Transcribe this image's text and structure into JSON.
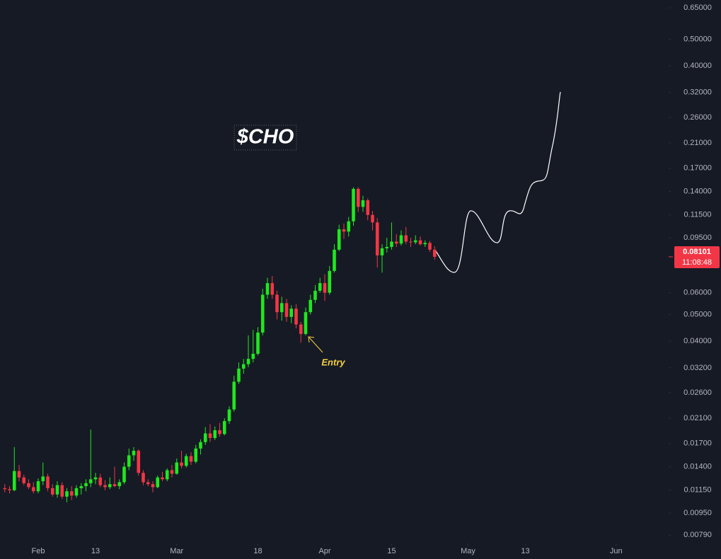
{
  "chart_data": {
    "type": "candlestick",
    "title": "$CHO",
    "annotation": "Entry",
    "last_price": 0.08101,
    "countdown": "11:08:48",
    "log_scale": true,
    "up_color": "#1ee81e",
    "down_color": "#f23645",
    "x": [
      "01-25",
      "01-26",
      "01-27",
      "01-28",
      "01-29",
      "01-30",
      "01-31",
      "02-01",
      "02-02",
      "02-03",
      "02-04",
      "02-05",
      "02-06",
      "02-07",
      "02-08",
      "02-09",
      "02-10",
      "02-11",
      "02-12",
      "02-13",
      "02-14",
      "02-15",
      "02-16",
      "02-17",
      "02-18",
      "02-19",
      "02-20",
      "02-21",
      "02-22",
      "02-23",
      "02-24",
      "02-25",
      "02-26",
      "02-27",
      "02-28",
      "02-29",
      "03-01",
      "03-02",
      "03-03",
      "03-04",
      "03-05",
      "03-06",
      "03-07",
      "03-08",
      "03-09",
      "03-10",
      "03-11",
      "03-12",
      "03-13",
      "03-14",
      "03-15",
      "03-16",
      "03-17",
      "03-18",
      "03-19",
      "03-20",
      "03-21",
      "03-22",
      "03-23",
      "03-24",
      "03-25",
      "03-26",
      "03-27",
      "03-28",
      "03-29",
      "03-30",
      "03-31",
      "04-01",
      "04-02",
      "04-03",
      "04-04",
      "04-05",
      "04-06",
      "04-07",
      "04-08",
      "04-09",
      "04-10",
      "04-11",
      "04-12",
      "04-13",
      "04-14",
      "04-15",
      "04-16",
      "04-17",
      "04-18",
      "04-19",
      "04-20",
      "04-21",
      "04-22",
      "04-23",
      "04-24"
    ],
    "open": [
      0.0117,
      0.0116,
      0.0115,
      0.0135,
      0.0128,
      0.0122,
      0.0118,
      0.0114,
      0.0124,
      0.0129,
      0.0117,
      0.0111,
      0.012,
      0.0109,
      0.0114,
      0.011,
      0.0117,
      0.0119,
      0.0122,
      0.0126,
      0.0128,
      0.012,
      0.0118,
      0.0121,
      0.0119,
      0.0123,
      0.014,
      0.0154,
      0.016,
      0.0133,
      0.0123,
      0.0121,
      0.0118,
      0.0128,
      0.0126,
      0.0136,
      0.0132,
      0.0145,
      0.0141,
      0.0153,
      0.0146,
      0.0163,
      0.0172,
      0.0185,
      0.0178,
      0.019,
      0.0184,
      0.0205,
      0.0226,
      0.0285,
      0.0318,
      0.033,
      0.0345,
      0.036,
      0.043,
      0.059,
      0.065,
      0.059,
      0.051,
      0.055,
      0.049,
      0.0525,
      0.046,
      0.0425,
      0.051,
      0.0565,
      0.061,
      0.065,
      0.06,
      0.072,
      0.086,
      0.102,
      0.1,
      0.109,
      0.143,
      0.123,
      0.13,
      0.115,
      0.108,
      0.082,
      0.087,
      0.088,
      0.092,
      0.0905,
      0.097,
      0.092,
      0.0915,
      0.093,
      0.09,
      0.091,
      0.086
    ],
    "high": [
      0.0121,
      0.0119,
      0.0165,
      0.0142,
      0.0131,
      0.0126,
      0.0123,
      0.0127,
      0.0145,
      0.0132,
      0.0121,
      0.0124,
      0.0123,
      0.0117,
      0.0119,
      0.012,
      0.0122,
      0.0126,
      0.0191,
      0.0133,
      0.0132,
      0.0125,
      0.0128,
      0.014,
      0.0126,
      0.0145,
      0.0163,
      0.0165,
      0.0162,
      0.0136,
      0.0126,
      0.0124,
      0.013,
      0.0134,
      0.0138,
      0.0142,
      0.015,
      0.016,
      0.0156,
      0.0158,
      0.0168,
      0.0176,
      0.0195,
      0.02,
      0.0196,
      0.0202,
      0.021,
      0.0232,
      0.03,
      0.0335,
      0.0345,
      0.042,
      0.044,
      0.045,
      0.062,
      0.068,
      0.069,
      0.061,
      0.058,
      0.057,
      0.054,
      0.0545,
      0.047,
      0.053,
      0.059,
      0.064,
      0.068,
      0.07,
      0.075,
      0.09,
      0.106,
      0.107,
      0.113,
      0.145,
      0.145,
      0.135,
      0.132,
      0.119,
      0.112,
      0.09,
      0.095,
      0.108,
      0.098,
      0.101,
      0.104,
      0.095,
      0.097,
      0.096,
      0.093,
      0.0925,
      0.0885
    ],
    "low": [
      0.0113,
      0.0112,
      0.0114,
      0.0124,
      0.012,
      0.0116,
      0.0112,
      0.0112,
      0.012,
      0.0114,
      0.0109,
      0.0108,
      0.0107,
      0.0104,
      0.0106,
      0.0108,
      0.0111,
      0.0114,
      0.0118,
      0.0121,
      0.0118,
      0.0115,
      0.0116,
      0.0118,
      0.0116,
      0.0121,
      0.0136,
      0.0147,
      0.013,
      0.012,
      0.0119,
      0.0113,
      0.0117,
      0.0124,
      0.0124,
      0.0128,
      0.0131,
      0.0138,
      0.0139,
      0.0142,
      0.0144,
      0.0155,
      0.0168,
      0.0172,
      0.0175,
      0.018,
      0.0182,
      0.02,
      0.0222,
      0.028,
      0.0305,
      0.0322,
      0.0335,
      0.0355,
      0.042,
      0.057,
      0.057,
      0.048,
      0.0475,
      0.047,
      0.0465,
      0.0445,
      0.0395,
      0.042,
      0.05,
      0.055,
      0.06,
      0.056,
      0.059,
      0.071,
      0.085,
      0.094,
      0.096,
      0.105,
      0.118,
      0.118,
      0.11,
      0.101,
      0.074,
      0.071,
      0.084,
      0.086,
      0.088,
      0.089,
      0.09,
      0.088,
      0.09,
      0.089,
      0.088,
      0.0845,
      0.079
    ],
    "close": [
      0.0116,
      0.0115,
      0.0135,
      0.0128,
      0.0122,
      0.0118,
      0.0114,
      0.0124,
      0.0129,
      0.0117,
      0.0111,
      0.012,
      0.0109,
      0.0114,
      0.011,
      0.0117,
      0.0119,
      0.0122,
      0.0126,
      0.0128,
      0.012,
      0.0118,
      0.0121,
      0.0119,
      0.0123,
      0.014,
      0.0154,
      0.016,
      0.0133,
      0.0123,
      0.0121,
      0.0118,
      0.0128,
      0.0126,
      0.0136,
      0.0132,
      0.0145,
      0.0141,
      0.0153,
      0.0146,
      0.0163,
      0.0172,
      0.0185,
      0.0178,
      0.019,
      0.0184,
      0.0205,
      0.0226,
      0.0285,
      0.0318,
      0.033,
      0.0345,
      0.036,
      0.043,
      0.059,
      0.065,
      0.059,
      0.051,
      0.055,
      0.049,
      0.0525,
      0.046,
      0.0425,
      0.051,
      0.0565,
      0.061,
      0.065,
      0.06,
      0.072,
      0.086,
      0.102,
      0.1,
      0.109,
      0.143,
      0.123,
      0.13,
      0.115,
      0.108,
      0.082,
      0.087,
      0.088,
      0.092,
      0.0905,
      0.097,
      0.092,
      0.0915,
      0.093,
      0.09,
      0.091,
      0.086,
      0.08101
    ],
    "xlim": [
      "01-24",
      "06-12"
    ],
    "xticks": [
      {
        "value": "02-01",
        "label": "Feb"
      },
      {
        "value": "02-13",
        "label": "13"
      },
      {
        "value": "03-01",
        "label": "Mar"
      },
      {
        "value": "03-18",
        "label": "18"
      },
      {
        "value": "04-01",
        "label": "Apr"
      },
      {
        "value": "04-15",
        "label": "15"
      },
      {
        "value": "05-01",
        "label": "May"
      },
      {
        "value": "05-13",
        "label": "13"
      },
      {
        "value": "06-01",
        "label": "Jun"
      }
    ],
    "ylim": [
      0.00737,
      0.694
    ],
    "yticks": [
      {
        "value": 0.65,
        "label": "0.65000"
      },
      {
        "value": 0.5,
        "label": "0.50000"
      },
      {
        "value": 0.4,
        "label": "0.40000"
      },
      {
        "value": 0.32,
        "label": "0.32000"
      },
      {
        "value": 0.26,
        "label": "0.26000"
      },
      {
        "value": 0.21,
        "label": "0.21000"
      },
      {
        "value": 0.17,
        "label": "0.17000"
      },
      {
        "value": 0.14,
        "label": "0.14000"
      },
      {
        "value": 0.115,
        "label": "0.11500"
      },
      {
        "value": 0.095,
        "label": "0.09500"
      },
      {
        "value": 0.06,
        "label": "0.06000"
      },
      {
        "value": 0.05,
        "label": "0.05000"
      },
      {
        "value": 0.04,
        "label": "0.04000"
      },
      {
        "value": 0.032,
        "label": "0.03200"
      },
      {
        "value": 0.026,
        "label": "0.02600"
      },
      {
        "value": 0.021,
        "label": "0.02100"
      },
      {
        "value": 0.017,
        "label": "0.01700"
      },
      {
        "value": 0.014,
        "label": "0.01400"
      },
      {
        "value": 0.0115,
        "label": "0.01150"
      },
      {
        "value": 0.0095,
        "label": "0.00950"
      },
      {
        "value": 0.0079,
        "label": "0.00790"
      }
    ]
  }
}
